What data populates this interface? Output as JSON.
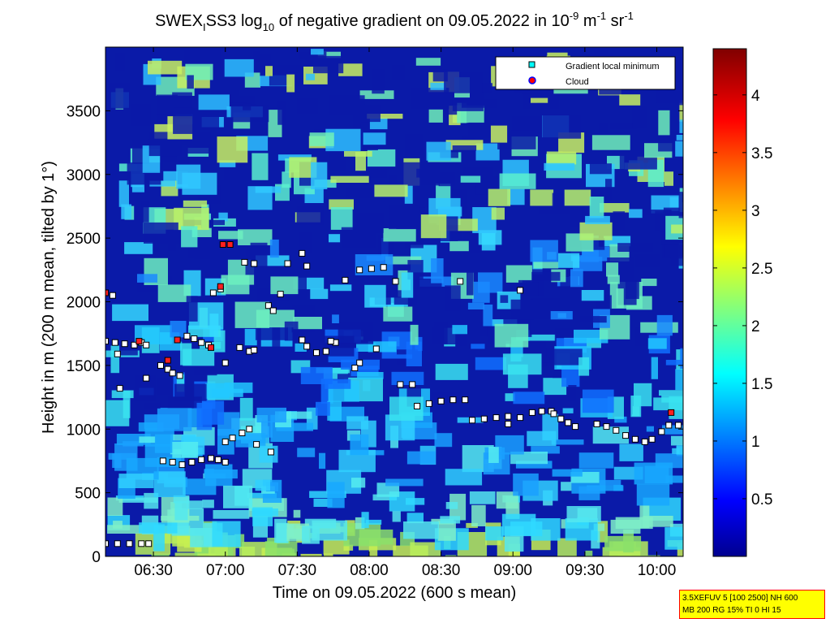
{
  "chart_data": {
    "type": "heatmap",
    "title": {
      "p1": "SWEX",
      "sub1": "I",
      "p2": "SS3 log",
      "sub2": "10",
      "p3": " of negative gradient on 09.05.2022 in 10",
      "sup1": "-9",
      "p4": " m",
      "sup2": "-1",
      "p5": " sr",
      "sup3": "-1"
    },
    "xlabel": "Time on 09.05.2022 (600 s mean)",
    "ylabel": "Height in m (200 m mean, tilted by 1°)",
    "x_unit": "minutes after 06:00",
    "xlim": [
      10,
      251
    ],
    "ylim": [
      0,
      4000
    ],
    "x_ticks": [
      {
        "v": 30,
        "label": "06:30"
      },
      {
        "v": 60,
        "label": "07:00"
      },
      {
        "v": 90,
        "label": "07:30"
      },
      {
        "v": 120,
        "label": "08:00"
      },
      {
        "v": 150,
        "label": "08:30"
      },
      {
        "v": 180,
        "label": "09:00"
      },
      {
        "v": 210,
        "label": "09:30"
      },
      {
        "v": 240,
        "label": "10:00"
      }
    ],
    "y_ticks": [
      0,
      500,
      1000,
      1500,
      2000,
      2500,
      3000,
      3500
    ],
    "colorbar": {
      "range": [
        0,
        4.4
      ],
      "ticks": [
        0.5,
        1,
        1.5,
        2,
        2.5,
        3,
        3.5,
        4
      ],
      "colormap": "jet"
    },
    "legend": {
      "position": "top-right",
      "entries": [
        {
          "label": "Gradient local minimum",
          "marker": "square",
          "color": "#00ffff"
        },
        {
          "label": "Cloud",
          "marker": "circle",
          "color": "#ff0000"
        }
      ]
    },
    "series": [
      {
        "name": "Gradient local minimum",
        "kind": "line",
        "points": [
          [
            10,
            100
          ],
          [
            15,
            100
          ],
          [
            20,
            100
          ],
          [
            25,
            100
          ],
          [
            28,
            100
          ],
          [
            10,
            1690
          ],
          [
            14,
            1680
          ],
          [
            18,
            1670
          ],
          [
            22,
            1660
          ],
          [
            25,
            1680
          ],
          [
            27,
            1660
          ],
          [
            10,
            2070
          ],
          [
            13,
            2050
          ],
          [
            33,
            1500
          ],
          [
            36,
            1470
          ],
          [
            38,
            1440
          ],
          [
            41,
            1420
          ],
          [
            44,
            1730
          ],
          [
            47,
            1710
          ],
          [
            50,
            1680
          ],
          [
            53,
            1660
          ],
          [
            34,
            750
          ],
          [
            38,
            740
          ],
          [
            42,
            720
          ],
          [
            46,
            740
          ],
          [
            50,
            760
          ],
          [
            54,
            770
          ],
          [
            57,
            760
          ],
          [
            60,
            740
          ],
          [
            55,
            2070
          ],
          [
            58,
            2100
          ],
          [
            60,
            900
          ],
          [
            63,
            930
          ],
          [
            67,
            970
          ],
          [
            70,
            1000
          ],
          [
            66,
            1640
          ],
          [
            70,
            1610
          ],
          [
            68,
            2310
          ],
          [
            72,
            2300
          ],
          [
            78,
            1970
          ],
          [
            80,
            1930
          ],
          [
            83,
            2060
          ],
          [
            86,
            2300
          ],
          [
            92,
            2380
          ],
          [
            94,
            1650
          ],
          [
            98,
            1600
          ],
          [
            102,
            1610
          ],
          [
            106,
            1680
          ],
          [
            116,
            2250
          ],
          [
            121,
            2260
          ],
          [
            126,
            2270
          ],
          [
            140,
            1180
          ],
          [
            145,
            1200
          ],
          [
            150,
            1220
          ],
          [
            155,
            1230
          ],
          [
            160,
            1230
          ],
          [
            163,
            1070
          ],
          [
            168,
            1080
          ],
          [
            173,
            1090
          ],
          [
            178,
            1100
          ],
          [
            183,
            1090
          ],
          [
            188,
            1130
          ],
          [
            192,
            1140
          ],
          [
            196,
            1140
          ],
          [
            197,
            1120
          ],
          [
            200,
            1080
          ],
          [
            203,
            1050
          ],
          [
            206,
            1020
          ],
          [
            215,
            1040
          ],
          [
            219,
            1020
          ],
          [
            223,
            990
          ],
          [
            227,
            950
          ],
          [
            231,
            920
          ],
          [
            235,
            900
          ],
          [
            238,
            920
          ],
          [
            242,
            980
          ],
          [
            245,
            1030
          ],
          [
            249,
            1030
          ]
        ]
      },
      {
        "name": "Gradient local minimum",
        "kind": "scatter",
        "points": [
          [
            27,
            1400
          ],
          [
            16,
            1320
          ],
          [
            15,
            1590
          ],
          [
            73,
            880
          ],
          [
            79,
            820
          ],
          [
            92,
            1700
          ],
          [
            116,
            1520
          ],
          [
            138,
            1350
          ],
          [
            110,
            2170
          ],
          [
            131,
            2160
          ],
          [
            158,
            2160
          ],
          [
            183,
            2090
          ],
          [
            123,
            1630
          ],
          [
            133,
            1350
          ],
          [
            94,
            2280
          ],
          [
            114,
            1480
          ],
          [
            60,
            1520
          ],
          [
            72,
            1620
          ],
          [
            104,
            1690
          ],
          [
            178,
            1040
          ]
        ]
      },
      {
        "name": "Cloud",
        "kind": "scatter",
        "points": [
          [
            10,
            2070
          ],
          [
            24,
            1690
          ],
          [
            36,
            1540
          ],
          [
            40,
            1700
          ],
          [
            59,
            2450
          ],
          [
            62,
            2450
          ],
          [
            58,
            2120
          ],
          [
            246,
            1130
          ],
          [
            54,
            1640
          ]
        ]
      }
    ]
  },
  "info_box": {
    "line1": "3.5XEFUV 5 [100 2500] NH 600",
    "line2": "MB 200 RG 15% TI 0 HI 15"
  }
}
